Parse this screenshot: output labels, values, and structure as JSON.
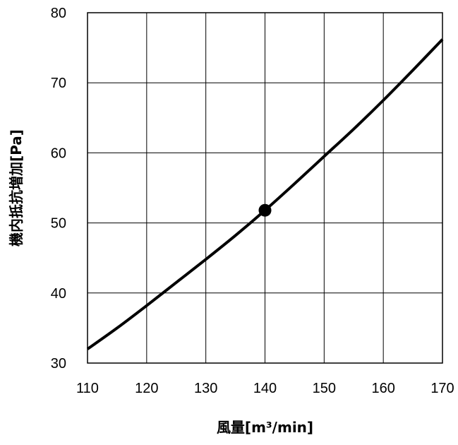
{
  "chart_data": {
    "type": "line",
    "title": "",
    "xlabel": "風量[m³/min]",
    "ylabel": "機内抵抗増加[Pa]",
    "xlim": [
      110,
      170
    ],
    "ylim": [
      30,
      80
    ],
    "x_ticks": [
      110,
      120,
      130,
      140,
      150,
      160,
      170
    ],
    "y_ticks": [
      30,
      40,
      50,
      60,
      70,
      80
    ],
    "grid": true,
    "legend": "none",
    "series": [
      {
        "x": [
          110,
          115,
          120,
          125,
          130,
          135,
          140,
          145,
          150,
          155,
          160,
          165,
          170
        ],
        "y": [
          32.0,
          35.0,
          38.2,
          41.5,
          44.8,
          48.2,
          51.8,
          55.6,
          59.5,
          63.4,
          67.5,
          71.8,
          76.2
        ],
        "color": "#000000"
      }
    ],
    "markers": [
      {
        "x": 140,
        "y": 51.8
      }
    ]
  }
}
